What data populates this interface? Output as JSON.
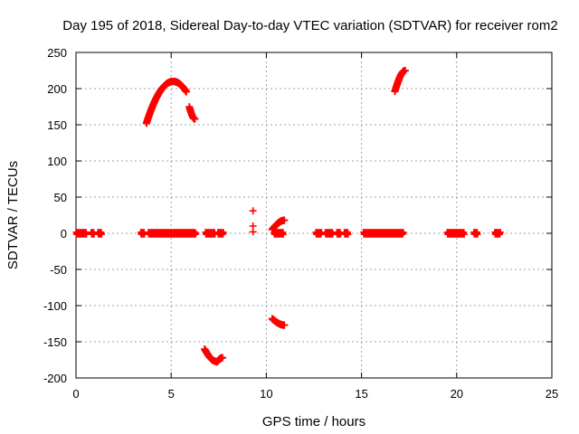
{
  "chart_data": {
    "type": "scatter",
    "title": "Day 195 of 2018, Sidereal Day-to-day VTEC variation (SDTVAR) for receiver rom2",
    "xlabel": "GPS time / hours",
    "ylabel": "SDTVAR / TECUs",
    "xlim": [
      0,
      25
    ],
    "ylim": [
      -200,
      250
    ],
    "xticks": [
      0,
      5,
      10,
      15,
      20,
      25
    ],
    "yticks": [
      -200,
      -150,
      -100,
      -50,
      0,
      50,
      100,
      150,
      200,
      250
    ],
    "grid": true,
    "series": [
      {
        "name": "SDTVAR",
        "color": "#ff0000",
        "marker": "plus",
        "zero_segments": [
          [
            0.0,
            0.55
          ],
          [
            0.8,
            0.95
          ],
          [
            1.15,
            1.35
          ],
          [
            3.4,
            3.6
          ],
          [
            3.8,
            5.4
          ],
          [
            5.4,
            5.9
          ],
          [
            5.9,
            6.3
          ],
          [
            6.8,
            7.3
          ],
          [
            7.45,
            7.75
          ],
          [
            10.4,
            10.9
          ],
          [
            12.6,
            12.9
          ],
          [
            13.1,
            13.5
          ],
          [
            13.7,
            13.9
          ],
          [
            14.1,
            14.3
          ],
          [
            15.1,
            17.2
          ],
          [
            19.5,
            19.9
          ],
          [
            19.9,
            20.4
          ],
          [
            20.9,
            21.1
          ],
          [
            22.0,
            22.3
          ]
        ],
        "arcs": [
          {
            "x_start": 3.7,
            "x_end": 5.8,
            "x_peak": 5.1,
            "y_peak": 210,
            "y_at_start": 152
          },
          {
            "x_start": 5.95,
            "x_end": 6.25,
            "y_start": 175,
            "y_end": 158
          },
          {
            "x_start": 6.75,
            "x_end": 7.35,
            "y_start": -160,
            "y_end": -177
          },
          {
            "x_start": 7.4,
            "x_end": 7.7,
            "y_start": -178,
            "y_end": -172
          },
          {
            "x_start": 10.3,
            "x_end": 10.95,
            "y_start": -118,
            "y_end": -127
          },
          {
            "x_start": 10.3,
            "x_end": 10.95,
            "y_start": 5,
            "y_end": 18
          },
          {
            "x_start": 16.75,
            "x_end": 17.3,
            "y_start": 196,
            "y_end": 225
          }
        ],
        "isolated_points": [
          {
            "x": 9.3,
            "y": 31
          },
          {
            "x": 9.3,
            "y": 10
          },
          {
            "x": 9.3,
            "y": 2
          }
        ]
      }
    ]
  }
}
